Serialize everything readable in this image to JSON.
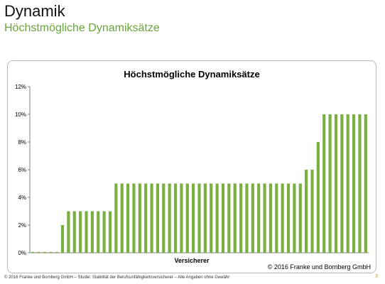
{
  "slide": {
    "title": "Dynamik",
    "subtitle": "Höchstmögliche Dynamiksätze",
    "footer": "© 2016 Franke und Bornberg GmbH – Studie: Stabilität der Berufsunfähigkeitsversicherer – Alle Angaben ohne Gewähr",
    "page_number": "3"
  },
  "colors": {
    "accent": "#6aa43b",
    "bar": "#7aaf42",
    "page_number": "#c9a227"
  },
  "chart_data": {
    "type": "bar",
    "title": "Höchstmögliche Dynamiksätze",
    "xlabel": "Versicherer",
    "ylabel": "",
    "ylim": [
      0,
      12
    ],
    "yticks": [
      "0%",
      "2%",
      "4%",
      "6%",
      "8%",
      "10%",
      "12%"
    ],
    "grid": false,
    "legend": "none",
    "annotation": "© 2016 Franke und Bornberg GmbH",
    "values": [
      0,
      0,
      0,
      0,
      0,
      2,
      3,
      3,
      3,
      3,
      3,
      3,
      3,
      3,
      5,
      5,
      5,
      5,
      5,
      5,
      5,
      5,
      5,
      5,
      5,
      5,
      5,
      5,
      5,
      5,
      5,
      5,
      5,
      5,
      5,
      5,
      5,
      5,
      5,
      5,
      5,
      5,
      5,
      5,
      5,
      5,
      6,
      6,
      8,
      10,
      10,
      10,
      10,
      10,
      10,
      10,
      10
    ]
  }
}
